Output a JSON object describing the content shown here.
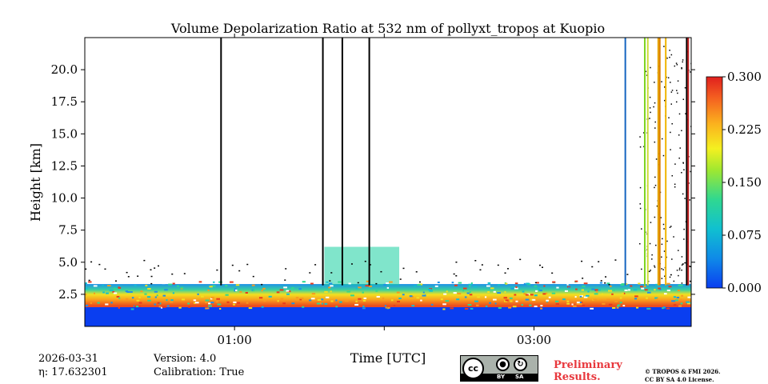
{
  "chart_data": {
    "type": "heatmap",
    "title": "Volume Depolarization Ratio at 532 nm of pollyxt_tropos at Kuopio",
    "xlabel": "Time [UTC]",
    "ylabel": "Height [km]",
    "x_range_hours": [
      0.0,
      4.05
    ],
    "xticks": [
      {
        "value": 1.0,
        "label": "01:00"
      },
      {
        "value": 2.0,
        "label": ""
      },
      {
        "value": 3.0,
        "label": "03:00"
      }
    ],
    "ylim": [
      0.0,
      22.5
    ],
    "yticks": [
      {
        "value": 2.5,
        "label": "2.5"
      },
      {
        "value": 5.0,
        "label": "5.0"
      },
      {
        "value": 7.5,
        "label": "7.5"
      },
      {
        "value": 10.0,
        "label": "10.0"
      },
      {
        "value": 12.5,
        "label": "12.5"
      },
      {
        "value": 15.0,
        "label": "15.0"
      },
      {
        "value": 17.5,
        "label": "17.5"
      },
      {
        "value": 20.0,
        "label": "20.0"
      }
    ],
    "colorbar": {
      "min": 0.0,
      "max": 0.3,
      "ticks": [
        "0.000",
        "0.075",
        "0.150",
        "0.225",
        "0.300"
      ],
      "colors": [
        "#0a3ef0",
        "#0fa0e6",
        "#18d0a0",
        "#5ee040",
        "#f4f020",
        "#fba01e",
        "#f05020",
        "#e0201e"
      ]
    },
    "layers": [
      {
        "name": "near-ground",
        "height_km": [
          0.0,
          1.5
        ],
        "value": 0.01
      },
      {
        "name": "aerosol-layer",
        "height_km": [
          1.5,
          3.3
        ],
        "value": 0.2
      },
      {
        "name": "elevated-patch",
        "time_h": [
          1.6,
          2.1
        ],
        "height_km": [
          3.2,
          6.2
        ],
        "value": 0.1
      }
    ],
    "vertical_lines": [
      {
        "time_h": 0.91,
        "color": "#000000"
      },
      {
        "time_h": 1.59,
        "color": "#000000"
      },
      {
        "time_h": 1.72,
        "color": "#000000"
      },
      {
        "time_h": 1.9,
        "color": "#000000"
      },
      {
        "time_h": 3.61,
        "color": "#1565c0"
      },
      {
        "time_h": 3.74,
        "color": "#7ed321"
      },
      {
        "time_h": 3.76,
        "color": "#cddc39"
      },
      {
        "time_h": 3.83,
        "color": "#e6a400"
      },
      {
        "time_h": 3.84,
        "color": "#d97e00"
      },
      {
        "time_h": 3.88,
        "color": "#f0b400"
      },
      {
        "time_h": 4.02,
        "color": "#000000"
      },
      {
        "time_h": 4.03,
        "color": "#c02020"
      }
    ]
  },
  "footer": {
    "date": "2026-03-31",
    "eta": "η: 17.632301",
    "version": "Version: 4.0",
    "calibration": "Calibration: True",
    "preliminary_line1": "Preliminary",
    "preliminary_line2": "Results.",
    "copyright_line1": "© TROPOS & FMI 2026.",
    "copyright_line2": "CC BY SA 4.0 License.",
    "license_badge": {
      "cc": "cc",
      "by": "BY",
      "sa": "SA"
    }
  }
}
